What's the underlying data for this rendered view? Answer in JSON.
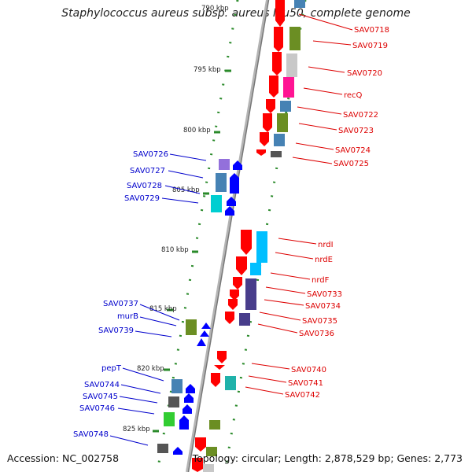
{
  "title": "Staphylococcus aureus subsp. aureus Mu50, complete genome",
  "footer": {
    "accession_label": "Accession:",
    "accession": "NC_002758",
    "topology_label": "Topology:",
    "topology": "circular",
    "length_label": "Length:",
    "length": "2,878,529 bp",
    "genes_label": "Genes:",
    "genes": "2,773"
  },
  "scale_labels": [
    "790 kbp",
    "795 kbp",
    "800 kbp",
    "805 kbp",
    "810 kbp",
    "815 kbp",
    "820 kbp",
    "825 kbp"
  ],
  "genes_right": [
    "SAV0718",
    "SAV0719",
    "SAV0720",
    "recQ",
    "SAV0722",
    "SAV0723",
    "SAV0724",
    "SAV0725",
    "nrdI",
    "nrdE",
    "nrdF",
    "SAV0733",
    "SAV0734",
    "SAV0735",
    "SAV0736",
    "SAV0740",
    "SAV0741",
    "SAV0742"
  ],
  "genes_left": [
    "SAV0726",
    "SAV0727",
    "SAV0728",
    "SAV0729",
    "SAV0737",
    "murB",
    "SAV0739",
    "pepT",
    "SAV0744",
    "SAV0745",
    "SAV0746",
    "SAV0748"
  ],
  "colors": {
    "forward_label": "#dd0000",
    "reverse_label": "#0000cc",
    "forward_arrow": "#ff0000",
    "reverse_arrow": "#0000ff",
    "backbone": "#888888",
    "tick": "#228822"
  }
}
